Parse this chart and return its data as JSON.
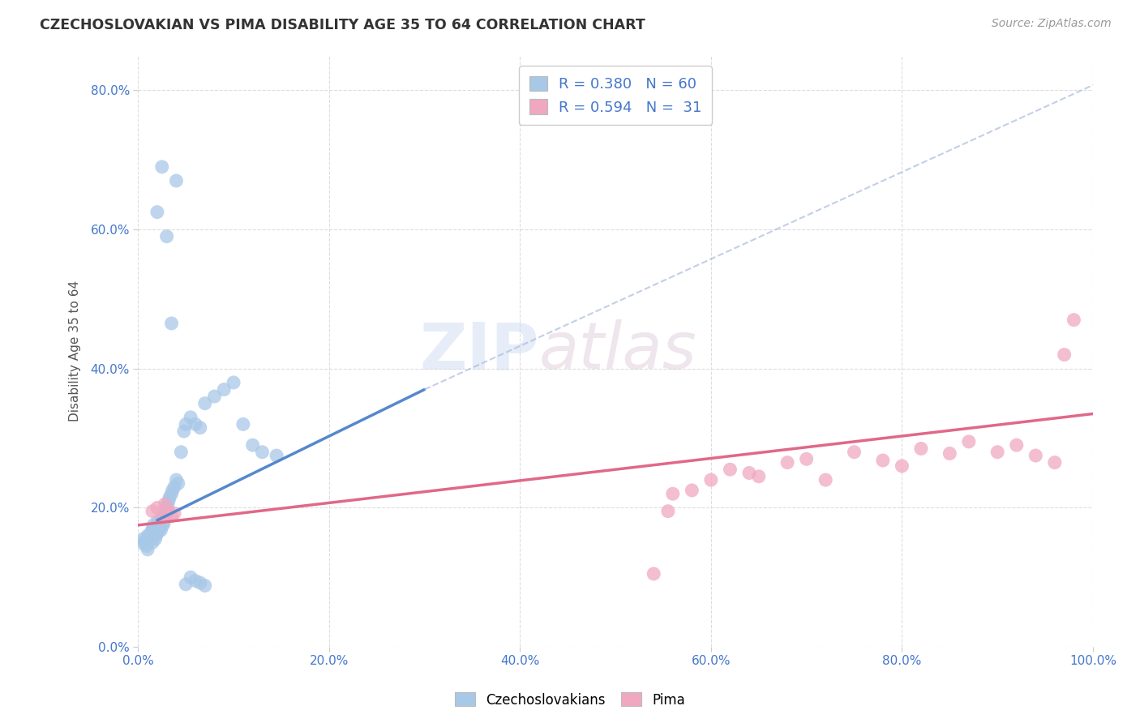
{
  "title": "CZECHOSLOVAKIAN VS PIMA DISABILITY AGE 35 TO 64 CORRELATION CHART",
  "source_text": "Source: ZipAtlas.com",
  "ylabel": "Disability Age 35 to 64",
  "xlabel": "",
  "legend_label1": "Czechoslovakians",
  "legend_label2": "Pima",
  "r1": 0.38,
  "n1": 60,
  "r2": 0.594,
  "n2": 31,
  "color1": "#a8c8e8",
  "color2": "#f0a8c0",
  "line1_color": "#5588cc",
  "line1_dash_color": "#aabbdd",
  "line2_color": "#e06888",
  "title_color": "#333333",
  "legend_text_color": "#4477cc",
  "background_color": "#ffffff",
  "grid_color": "#dddddd",
  "xlim": [
    0.0,
    1.0
  ],
  "ylim": [
    0.0,
    0.85
  ],
  "xticks": [
    0.0,
    0.2,
    0.4,
    0.6,
    0.8,
    1.0
  ],
  "yticks": [
    0.0,
    0.2,
    0.4,
    0.6,
    0.8
  ],
  "xtick_labels": [
    "0.0%",
    "20.0%",
    "40.0%",
    "60.0%",
    "80.0%",
    "100.0%"
  ],
  "ytick_labels": [
    "0.0%",
    "20.0%",
    "40.0%",
    "60.0%",
    "80.0%"
  ],
  "czech_x": [
    0.005,
    0.006,
    0.007,
    0.008,
    0.009,
    0.01,
    0.01,
    0.011,
    0.012,
    0.013,
    0.014,
    0.015,
    0.015,
    0.016,
    0.017,
    0.018,
    0.019,
    0.02,
    0.02,
    0.021,
    0.022,
    0.023,
    0.024,
    0.025,
    0.026,
    0.027,
    0.028,
    0.03,
    0.031,
    0.032,
    0.033,
    0.035,
    0.036,
    0.038,
    0.04,
    0.042,
    0.045,
    0.048,
    0.05,
    0.055,
    0.06,
    0.065,
    0.07,
    0.08,
    0.09,
    0.1,
    0.11,
    0.12,
    0.13,
    0.145,
    0.02,
    0.025,
    0.03,
    0.035,
    0.04,
    0.05,
    0.06,
    0.07,
    0.055,
    0.065
  ],
  "czech_y": [
    0.155,
    0.148,
    0.152,
    0.15,
    0.145,
    0.16,
    0.14,
    0.158,
    0.155,
    0.162,
    0.165,
    0.15,
    0.17,
    0.175,
    0.168,
    0.155,
    0.16,
    0.175,
    0.18,
    0.165,
    0.17,
    0.172,
    0.168,
    0.185,
    0.175,
    0.178,
    0.195,
    0.2,
    0.205,
    0.21,
    0.215,
    0.22,
    0.225,
    0.23,
    0.24,
    0.235,
    0.28,
    0.31,
    0.32,
    0.33,
    0.32,
    0.315,
    0.35,
    0.36,
    0.37,
    0.38,
    0.32,
    0.29,
    0.28,
    0.275,
    0.625,
    0.69,
    0.59,
    0.465,
    0.67,
    0.09,
    0.095,
    0.088,
    0.1,
    0.092
  ],
  "pima_x": [
    0.015,
    0.02,
    0.025,
    0.028,
    0.03,
    0.032,
    0.035,
    0.038,
    0.54,
    0.555,
    0.56,
    0.58,
    0.6,
    0.62,
    0.64,
    0.65,
    0.68,
    0.7,
    0.72,
    0.75,
    0.78,
    0.8,
    0.82,
    0.85,
    0.87,
    0.9,
    0.92,
    0.94,
    0.96,
    0.97,
    0.98
  ],
  "pima_y": [
    0.195,
    0.2,
    0.185,
    0.205,
    0.19,
    0.195,
    0.188,
    0.192,
    0.105,
    0.195,
    0.22,
    0.225,
    0.24,
    0.255,
    0.25,
    0.245,
    0.265,
    0.27,
    0.24,
    0.28,
    0.268,
    0.26,
    0.285,
    0.278,
    0.295,
    0.28,
    0.29,
    0.275,
    0.265,
    0.42,
    0.47
  ],
  "solid_line1_x": [
    0.02,
    0.3
  ],
  "solid_line1_y": [
    0.182,
    0.37
  ],
  "dash_line1_x": [
    0.3,
    1.02
  ],
  "dash_line1_y": [
    0.37,
    0.82
  ],
  "solid_line2_x": [
    0.0,
    1.0
  ],
  "solid_line2_y": [
    0.175,
    0.335
  ]
}
